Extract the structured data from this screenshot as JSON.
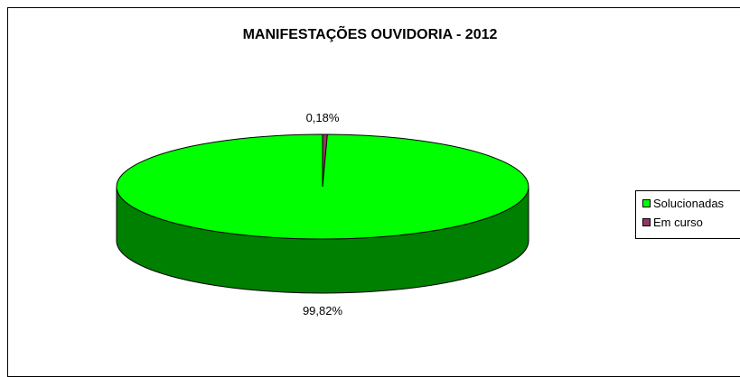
{
  "chart_data": {
    "type": "pie",
    "title": "MANIFESTAÇÕES OUVIDORIA - 2012",
    "three_d": true,
    "categories": [
      "Solucionadas",
      "Em curso"
    ],
    "values": [
      99.82,
      0.18
    ],
    "data_labels": [
      "99,82%",
      "0,18%"
    ],
    "colors": {
      "Solucionadas": {
        "top": "#00ff00",
        "side": "#008000"
      },
      "Em curso": {
        "top": "#993366",
        "side": "#4d1a33"
      }
    },
    "legend_position": "right"
  }
}
